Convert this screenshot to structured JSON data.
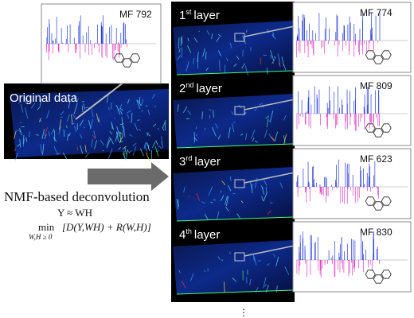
{
  "inset_original": {
    "label": "MF 792"
  },
  "original": {
    "label": "Original data"
  },
  "method": {
    "title": "NMF-based deconvolution",
    "approx": "Y ≈ WH",
    "min": "min",
    "constraint": "W,H ≥ 0",
    "objective": "[D(Y,WH) + R(W,H)]"
  },
  "layers": [
    {
      "number": "1",
      "suffix": "st",
      "label": "layer",
      "inset": "MF 774"
    },
    {
      "number": "2",
      "suffix": "nd",
      "label": "layer",
      "inset": "MF 809"
    },
    {
      "number": "3",
      "suffix": "rd",
      "label": "layer",
      "inset": "MF 623"
    },
    {
      "number": "4",
      "suffix": "th",
      "label": "layer",
      "inset": "MF 830"
    }
  ],
  "continuation": "⋮"
}
